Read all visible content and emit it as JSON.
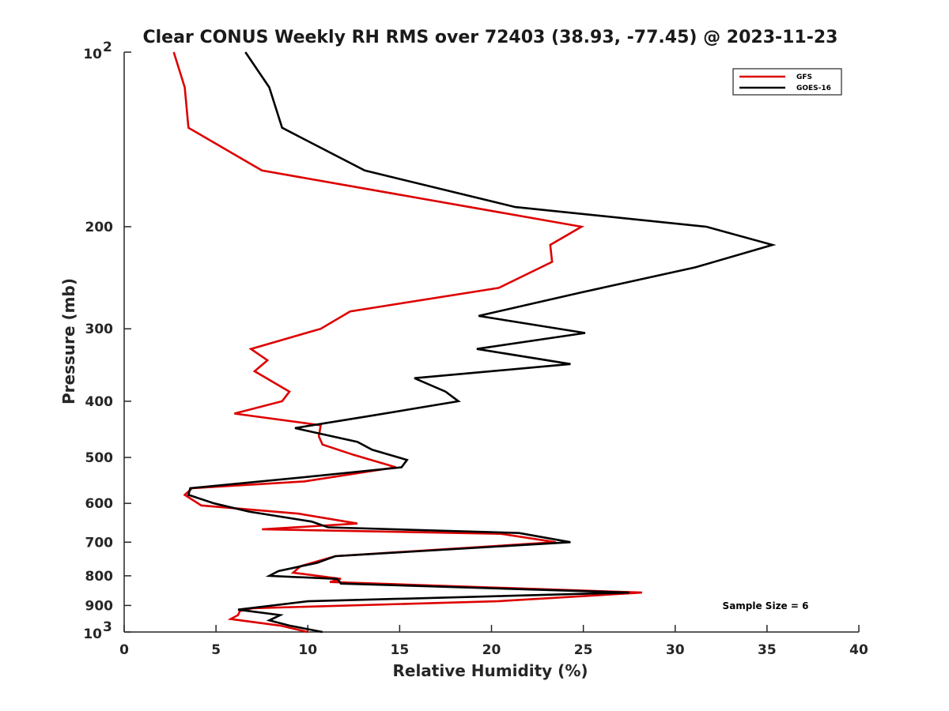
{
  "chart_data": {
    "type": "line",
    "title": "Clear CONUS Weekly RH RMS over 72403 (38.93, -77.45) @ 2023-11-23",
    "xlabel": "Relative Humidity (%)",
    "ylabel": "Pressure (mb)",
    "xlim": [
      0,
      40
    ],
    "ylim": [
      100,
      1000
    ],
    "yscale": "log",
    "y_reversed": true,
    "grid": false,
    "legend_position": "top-right",
    "x_ticks": [
      0,
      5,
      10,
      15,
      20,
      25,
      30,
      35,
      40
    ],
    "y_ticks": [
      {
        "value": 100,
        "base": "10",
        "exp": "2"
      },
      {
        "value": 200,
        "label": "200"
      },
      {
        "value": 300,
        "label": "300"
      },
      {
        "value": 400,
        "label": "400"
      },
      {
        "value": 500,
        "label": "500"
      },
      {
        "value": 600,
        "label": "600"
      },
      {
        "value": 700,
        "label": "700"
      },
      {
        "value": 800,
        "label": "800"
      },
      {
        "value": 900,
        "label": "900"
      },
      {
        "value": 1000,
        "base": "10",
        "exp": "3"
      }
    ],
    "annotation": "Sample Size = 6",
    "series": [
      {
        "name": "GFS",
        "color": "#dd0000",
        "points": [
          [
            2.7,
            100
          ],
          [
            3.3,
            115
          ],
          [
            3.5,
            135
          ],
          [
            7.5,
            160
          ],
          [
            24.9,
            200
          ],
          [
            23.2,
            215
          ],
          [
            23.3,
            230
          ],
          [
            20.4,
            255
          ],
          [
            12.3,
            280
          ],
          [
            10.7,
            300
          ],
          [
            6.9,
            325
          ],
          [
            7.8,
            340
          ],
          [
            7.1,
            355
          ],
          [
            9.0,
            385
          ],
          [
            8.6,
            400
          ],
          [
            6.0,
            420
          ],
          [
            10.7,
            440
          ],
          [
            10.6,
            460
          ],
          [
            10.8,
            475
          ],
          [
            12.5,
            495
          ],
          [
            14.8,
            520
          ],
          [
            9.8,
            550
          ],
          [
            3.7,
            565
          ],
          [
            3.3,
            580
          ],
          [
            4.2,
            605
          ],
          [
            9.5,
            625
          ],
          [
            12.7,
            650
          ],
          [
            7.5,
            665
          ],
          [
            20.5,
            677
          ],
          [
            23.5,
            700
          ],
          [
            11.5,
            740
          ],
          [
            9.6,
            770
          ],
          [
            9.2,
            790
          ],
          [
            11.8,
            810
          ],
          [
            11.2,
            820
          ],
          [
            28.2,
            855
          ],
          [
            20.3,
            885
          ],
          [
            7.0,
            910
          ],
          [
            6.3,
            920
          ],
          [
            6.2,
            935
          ],
          [
            5.8,
            950
          ],
          [
            8.5,
            975
          ],
          [
            10.0,
            1000
          ]
        ]
      },
      {
        "name": "GOES-16",
        "color": "#000000",
        "points": [
          [
            6.6,
            100
          ],
          [
            7.9,
            115
          ],
          [
            8.6,
            135
          ],
          [
            13.1,
            160
          ],
          [
            21.3,
            185
          ],
          [
            31.7,
            200
          ],
          [
            35.3,
            215
          ],
          [
            31.1,
            235
          ],
          [
            24.8,
            260
          ],
          [
            19.3,
            285
          ],
          [
            25.1,
            305
          ],
          [
            19.2,
            325
          ],
          [
            24.3,
            345
          ],
          [
            15.8,
            365
          ],
          [
            17.5,
            385
          ],
          [
            18.2,
            400
          ],
          [
            13.2,
            425
          ],
          [
            9.3,
            445
          ],
          [
            12.7,
            470
          ],
          [
            13.5,
            485
          ],
          [
            15.4,
            505
          ],
          [
            15.1,
            520
          ],
          [
            10.0,
            540
          ],
          [
            3.6,
            565
          ],
          [
            3.5,
            580
          ],
          [
            4.9,
            600
          ],
          [
            6.8,
            620
          ],
          [
            10.2,
            645
          ],
          [
            11.1,
            660
          ],
          [
            21.5,
            675
          ],
          [
            24.3,
            700
          ],
          [
            11.5,
            740
          ],
          [
            10.5,
            760
          ],
          [
            8.4,
            785
          ],
          [
            7.9,
            800
          ],
          [
            11.6,
            810
          ],
          [
            11.8,
            825
          ],
          [
            27.5,
            855
          ],
          [
            10.0,
            885
          ],
          [
            6.2,
            915
          ],
          [
            8.5,
            935
          ],
          [
            7.9,
            955
          ],
          [
            9.0,
            975
          ],
          [
            10.8,
            1000
          ]
        ]
      }
    ]
  }
}
